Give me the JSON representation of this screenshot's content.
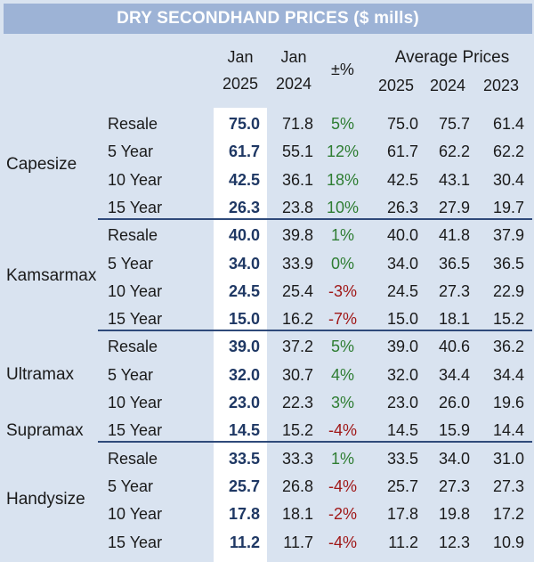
{
  "title": "DRY SECONDHAND PRICES ($ mills)",
  "headers": {
    "jan2025_line1": "Jan",
    "jan2025_line2": "2025",
    "jan2024_line1": "Jan",
    "jan2024_line2": "2024",
    "change": "±%",
    "avg_label": "Average Prices",
    "avg_2025": "2025",
    "avg_2024": "2024",
    "avg_2023": "2023"
  },
  "groups": [
    {
      "name": "Capesize",
      "rows": [
        {
          "label": "Resale",
          "jan2025": "75.0",
          "jan2024": "71.8",
          "change": "5%",
          "avg2025": "75.0",
          "avg2024": "75.7",
          "avg2023": "61.4"
        },
        {
          "label": "5 Year",
          "jan2025": "61.7",
          "jan2024": "55.1",
          "change": "12%",
          "avg2025": "61.7",
          "avg2024": "62.2",
          "avg2023": "62.2"
        },
        {
          "label": "10 Year",
          "jan2025": "42.5",
          "jan2024": "36.1",
          "change": "18%",
          "avg2025": "42.5",
          "avg2024": "43.1",
          "avg2023": "30.4"
        },
        {
          "label": "15 Year",
          "jan2025": "26.3",
          "jan2024": "23.8",
          "change": "10%",
          "avg2025": "26.3",
          "avg2024": "27.9",
          "avg2023": "19.7"
        }
      ]
    },
    {
      "name": "Kamsarmax",
      "rows": [
        {
          "label": "Resale",
          "jan2025": "40.0",
          "jan2024": "39.8",
          "change": "1%",
          "avg2025": "40.0",
          "avg2024": "41.8",
          "avg2023": "37.9"
        },
        {
          "label": "5 Year",
          "jan2025": "34.0",
          "jan2024": "33.9",
          "change": "0%",
          "avg2025": "34.0",
          "avg2024": "36.5",
          "avg2023": "36.5"
        },
        {
          "label": "10 Year",
          "jan2025": "24.5",
          "jan2024": "25.4",
          "change": "-3%",
          "avg2025": "24.5",
          "avg2024": "27.3",
          "avg2023": "22.9"
        },
        {
          "label": "15 Year",
          "jan2025": "15.0",
          "jan2024": "16.2",
          "change": "-7%",
          "avg2025": "15.0",
          "avg2024": "18.1",
          "avg2023": "15.2"
        }
      ]
    },
    {
      "name": "Ultramax",
      "name2": "Supramax",
      "rows": [
        {
          "label": "Resale",
          "jan2025": "39.0",
          "jan2024": "37.2",
          "change": "5%",
          "avg2025": "39.0",
          "avg2024": "40.6",
          "avg2023": "36.2"
        },
        {
          "label": "5 Year",
          "jan2025": "32.0",
          "jan2024": "30.7",
          "change": "4%",
          "avg2025": "32.0",
          "avg2024": "34.4",
          "avg2023": "34.4"
        },
        {
          "label": "10 Year",
          "jan2025": "23.0",
          "jan2024": "22.3",
          "change": "3%",
          "avg2025": "23.0",
          "avg2024": "26.0",
          "avg2023": "19.6"
        },
        {
          "label": "15 Year",
          "jan2025": "14.5",
          "jan2024": "15.2",
          "change": "-4%",
          "avg2025": "14.5",
          "avg2024": "15.9",
          "avg2023": "14.4"
        }
      ]
    },
    {
      "name": "Handysize",
      "rows": [
        {
          "label": "Resale",
          "jan2025": "33.5",
          "jan2024": "33.3",
          "change": "1%",
          "avg2025": "33.5",
          "avg2024": "34.0",
          "avg2023": "31.0"
        },
        {
          "label": "5 Year",
          "jan2025": "25.7",
          "jan2024": "26.8",
          "change": "-4%",
          "avg2025": "25.7",
          "avg2024": "27.3",
          "avg2023": "27.3"
        },
        {
          "label": "10 Year",
          "jan2025": "17.8",
          "jan2024": "18.1",
          "change": "-2%",
          "avg2025": "17.8",
          "avg2024": "19.8",
          "avg2023": "17.2"
        },
        {
          "label": "15 Year",
          "jan2025": "11.2",
          "jan2024": "11.7",
          "change": "-4%",
          "avg2025": "11.2",
          "avg2024": "12.3",
          "avg2023": "10.9"
        }
      ]
    }
  ]
}
